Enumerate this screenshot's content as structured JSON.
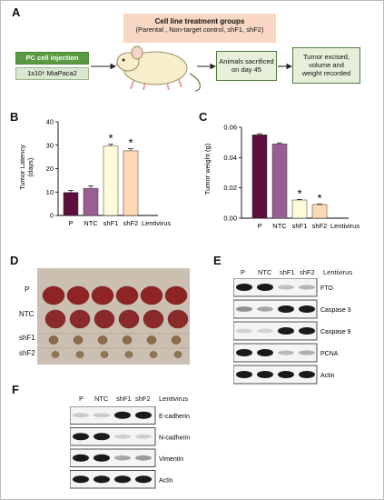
{
  "panels": {
    "a": "A",
    "b": "B",
    "c": "C",
    "d": "D",
    "e": "E",
    "f": "F"
  },
  "panelA": {
    "group_title": "Cell line treatment groups",
    "group_sub": "(Parental , Non-target control, shF1, shF2)",
    "injection": "PC cell injection",
    "cells": "1x10⁶ MiaPaca2",
    "sacrifice_l1": "Animals sacrificed",
    "sacrifice_l2": "on day 45",
    "tumor_l1": "Tumor excised,",
    "tumor_l2": "volume and",
    "tumor_l3": "weight recorded"
  },
  "colors": {
    "P": "#5c0f3c",
    "NTC": "#9a5e93",
    "shF1": "#fffbd8",
    "shF2": "#ffd9b3"
  },
  "chart_data": [
    {
      "type": "bar",
      "panel": "B",
      "categories": [
        "P",
        "NTC",
        "shF1",
        "shF2"
      ],
      "values": [
        9.8,
        11.6,
        29.6,
        27.6
      ],
      "errors": [
        0.9,
        1.0,
        0.8,
        0.9
      ],
      "significant": [
        "",
        "",
        "*",
        "*"
      ],
      "ylabel": "Tumor Latency (days)",
      "ylabel_l1": "Tumor Latency",
      "ylabel_l2": "(days)",
      "yticks": [
        0,
        10,
        20,
        30,
        40
      ],
      "ylim": [
        0,
        40
      ],
      "extra_label": "Lentivirus"
    },
    {
      "type": "bar",
      "panel": "C",
      "categories": [
        "P",
        "NTC",
        "shF1",
        "shF2"
      ],
      "values": [
        0.055,
        0.049,
        0.012,
        0.009
      ],
      "errors": [
        0.0007,
        0.0007,
        0.0004,
        0.0004
      ],
      "significant": [
        "",
        "",
        "*",
        "*"
      ],
      "ylabel": "Tumor weight (g)",
      "yticks": [
        "0.00",
        "0.02",
        "0.04",
        "0.06"
      ],
      "ylim": [
        0,
        0.06
      ],
      "extra_label": "Lentivirus"
    }
  ],
  "panelD": {
    "rows": [
      "P",
      "NTC",
      "shF1",
      "shF2"
    ]
  },
  "panelE": {
    "header": [
      "P",
      "NTC",
      "shF1",
      "shF2",
      "Lentivirus"
    ],
    "rows": [
      {
        "label": "FTO",
        "intensity": [
          1,
          1,
          0.18,
          0.22
        ]
      },
      {
        "label": "Caspase 3",
        "intensity": [
          0.4,
          0.3,
          1,
          1
        ]
      },
      {
        "label": "Caspase 9",
        "intensity": [
          0.08,
          0.08,
          1,
          1
        ]
      },
      {
        "label": "PCNA",
        "intensity": [
          1,
          1,
          0.2,
          0.25
        ]
      },
      {
        "label": "Actin",
        "intensity": [
          1,
          1,
          1,
          1
        ]
      }
    ]
  },
  "panelF": {
    "header": [
      "P",
      "NTC",
      "shF1",
      "shF2",
      "Lentivirus"
    ],
    "rows": [
      {
        "label": "E-cadherin",
        "intensity": [
          0.12,
          0.12,
          1,
          1
        ]
      },
      {
        "label": "N-cadherin",
        "intensity": [
          1,
          1,
          0.1,
          0.1
        ]
      },
      {
        "label": "Vimentin",
        "intensity": [
          1,
          1,
          0.3,
          0.35
        ]
      },
      {
        "label": "Actin",
        "intensity": [
          1,
          1,
          1,
          1
        ]
      }
    ]
  }
}
